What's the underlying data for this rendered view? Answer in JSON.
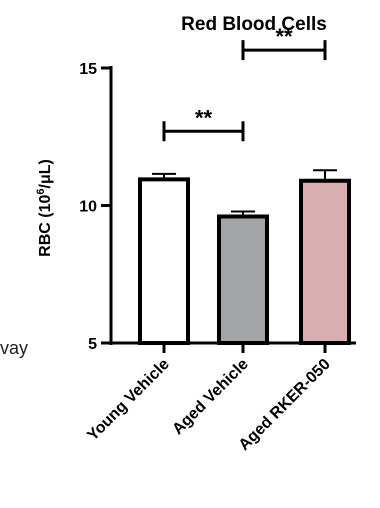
{
  "chart_data": {
    "type": "bar",
    "title": "Red Blood Cells",
    "ylabel_prefix": "RBC (10",
    "ylabel_exp": "6",
    "ylabel_suffix": "/μL)",
    "ylim": [
      5,
      15
    ],
    "yticks": [
      "5",
      "10",
      "15"
    ],
    "categories": [
      "Young Vehicle",
      "Aged Vehicle",
      "Aged RKER-050"
    ],
    "values": [
      10.95,
      9.6,
      10.9
    ],
    "errors": [
      0.2,
      0.18,
      0.38
    ],
    "colors": [
      "#ffffff",
      "#a3a4a8",
      "#d8aeb0"
    ],
    "significance": [
      {
        "from": 0,
        "to": 1,
        "y": 12.7,
        "label": "**"
      },
      {
        "from": 1,
        "to": 2,
        "y": 15.65,
        "label": "**"
      }
    ],
    "grid": false,
    "legend": "none"
  },
  "stray_text": "vay"
}
